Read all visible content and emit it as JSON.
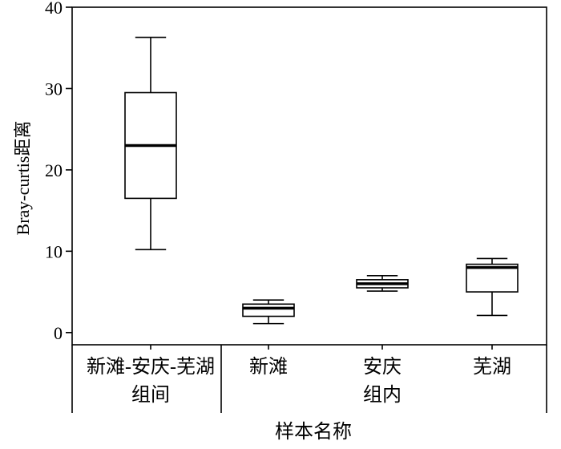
{
  "chart_data": {
    "type": "boxplot",
    "ylabel": "Bray-curtis距离",
    "xlabel": "样本名称",
    "ylim": [
      -1.5,
      40
    ],
    "yticks": [
      0,
      10,
      20,
      30,
      40
    ],
    "categories": [
      "新滩-安庆-芜湖",
      "新滩",
      "安庆",
      "芜湖"
    ],
    "groups": [
      {
        "label": "组间",
        "members": [
          "新滩-安庆-芜湖"
        ]
      },
      {
        "label": "组内",
        "members": [
          "新滩",
          "安庆",
          "芜湖"
        ]
      }
    ],
    "boxes": [
      {
        "category": "新滩-安庆-芜湖",
        "min": 10.2,
        "q1": 16.5,
        "median": 23.0,
        "q3": 29.5,
        "max": 36.3
      },
      {
        "category": "新滩",
        "min": 1.1,
        "q1": 2.0,
        "median": 3.0,
        "q3": 3.5,
        "max": 4.0
      },
      {
        "category": "安庆",
        "min": 5.1,
        "q1": 5.5,
        "median": 6.0,
        "q3": 6.5,
        "max": 7.0
      },
      {
        "category": "芜湖",
        "min": 2.1,
        "q1": 5.0,
        "median": 8.0,
        "q3": 8.4,
        "max": 9.1
      }
    ]
  }
}
